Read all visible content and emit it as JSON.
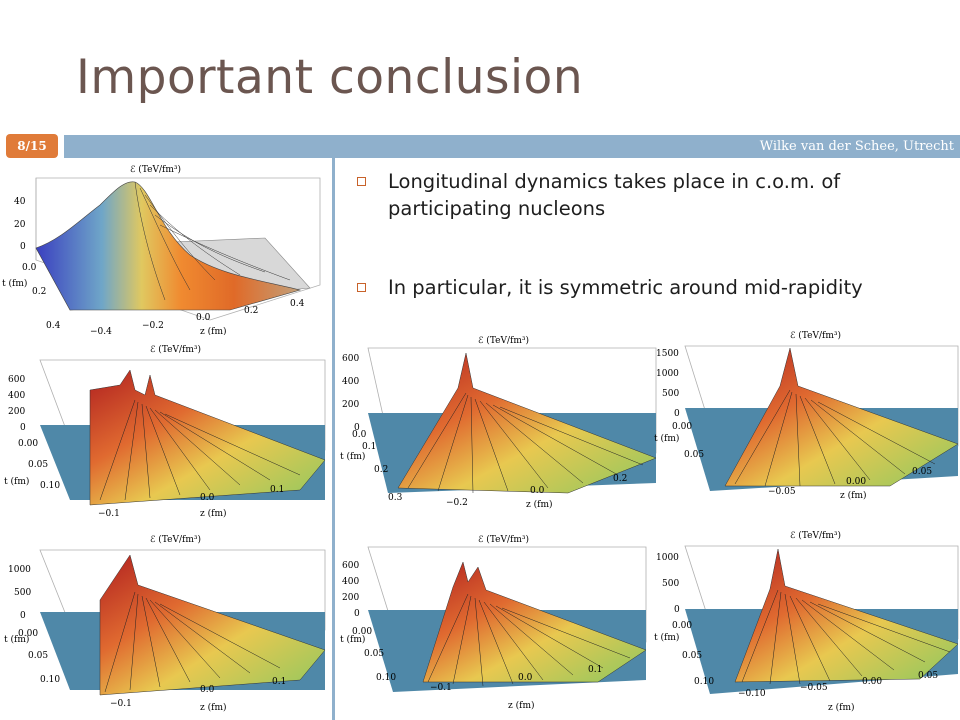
{
  "slide": {
    "title": "Important conclusion",
    "page_number": "8/15",
    "footer_author": "Wilke van der Schee, Utrecht",
    "bullets": [
      "Longitudinal dynamics takes place in c.o.m. of participating nucleons",
      "In particular, it is symmetric around mid-rapidity"
    ]
  },
  "plots": [
    {
      "zlabel": "ℰ (TeV/fm³)",
      "zticks": [
        "40",
        "20",
        "0"
      ],
      "tlabel": "t (fm)",
      "tticks": [
        "0.0",
        "0.2",
        "0.4"
      ],
      "xlabel": "z (fm)",
      "xticks": [
        "−0.4",
        "−0.2",
        "0.0",
        "0.2",
        "0.4"
      ]
    },
    {
      "zlabel": "ℰ (TeV/fm³)",
      "zticks": [
        "600",
        "400",
        "200",
        "0"
      ],
      "tlabel": "t (fm)",
      "tticks": [
        "0.00",
        "0.05",
        "0.10"
      ],
      "xlabel": "z (fm)",
      "xticks": [
        "−0.1",
        "0.0",
        "0.1"
      ]
    },
    {
      "zlabel": "ℰ (TeV/fm³)",
      "zticks": [
        "1000",
        "500",
        "0"
      ],
      "tlabel": "t (fm)",
      "tticks": [
        "0.00",
        "0.05",
        "0.10"
      ],
      "xlabel": "z (fm)",
      "xticks": [
        "−0.1",
        "0.0",
        "0.1"
      ]
    },
    {
      "zlabel": "ℰ (TeV/fm³)",
      "zticks": [
        "600",
        "400",
        "200",
        "0"
      ],
      "tlabel": "t (fm)",
      "tticks": [
        "0.0",
        "0.1",
        "0.2",
        "0.3"
      ],
      "xlabel": "z (fm)",
      "xticks": [
        "−0.2",
        "0.0",
        "0.2"
      ]
    },
    {
      "zlabel": "ℰ (TeV/fm³)",
      "zticks": [
        "1500",
        "1000",
        "500",
        "0"
      ],
      "tlabel": "t (fm)",
      "tticks": [
        "0.00",
        "0.05"
      ],
      "xlabel": "z (fm)",
      "xticks": [
        "−0.05",
        "0.00",
        "0.05"
      ]
    },
    {
      "zlabel": "ℰ (TeV/fm³)",
      "zticks": [
        "600",
        "400",
        "200",
        "0"
      ],
      "tlabel": "t (fm)",
      "tticks": [
        "0.00",
        "0.05",
        "0.10"
      ],
      "xlabel": "z (fm)",
      "xticks": [
        "−0.1",
        "0.0",
        "0.1"
      ]
    },
    {
      "zlabel": "ℰ (TeV/fm³)",
      "zticks": [
        "1000",
        "500",
        "0"
      ],
      "tlabel": "t (fm)",
      "tticks": [
        "0.00",
        "0.05",
        "0.10"
      ],
      "xlabel": "z (fm)",
      "xticks": [
        "−0.10",
        "−0.05",
        "0.00",
        "0.05"
      ]
    }
  ]
}
